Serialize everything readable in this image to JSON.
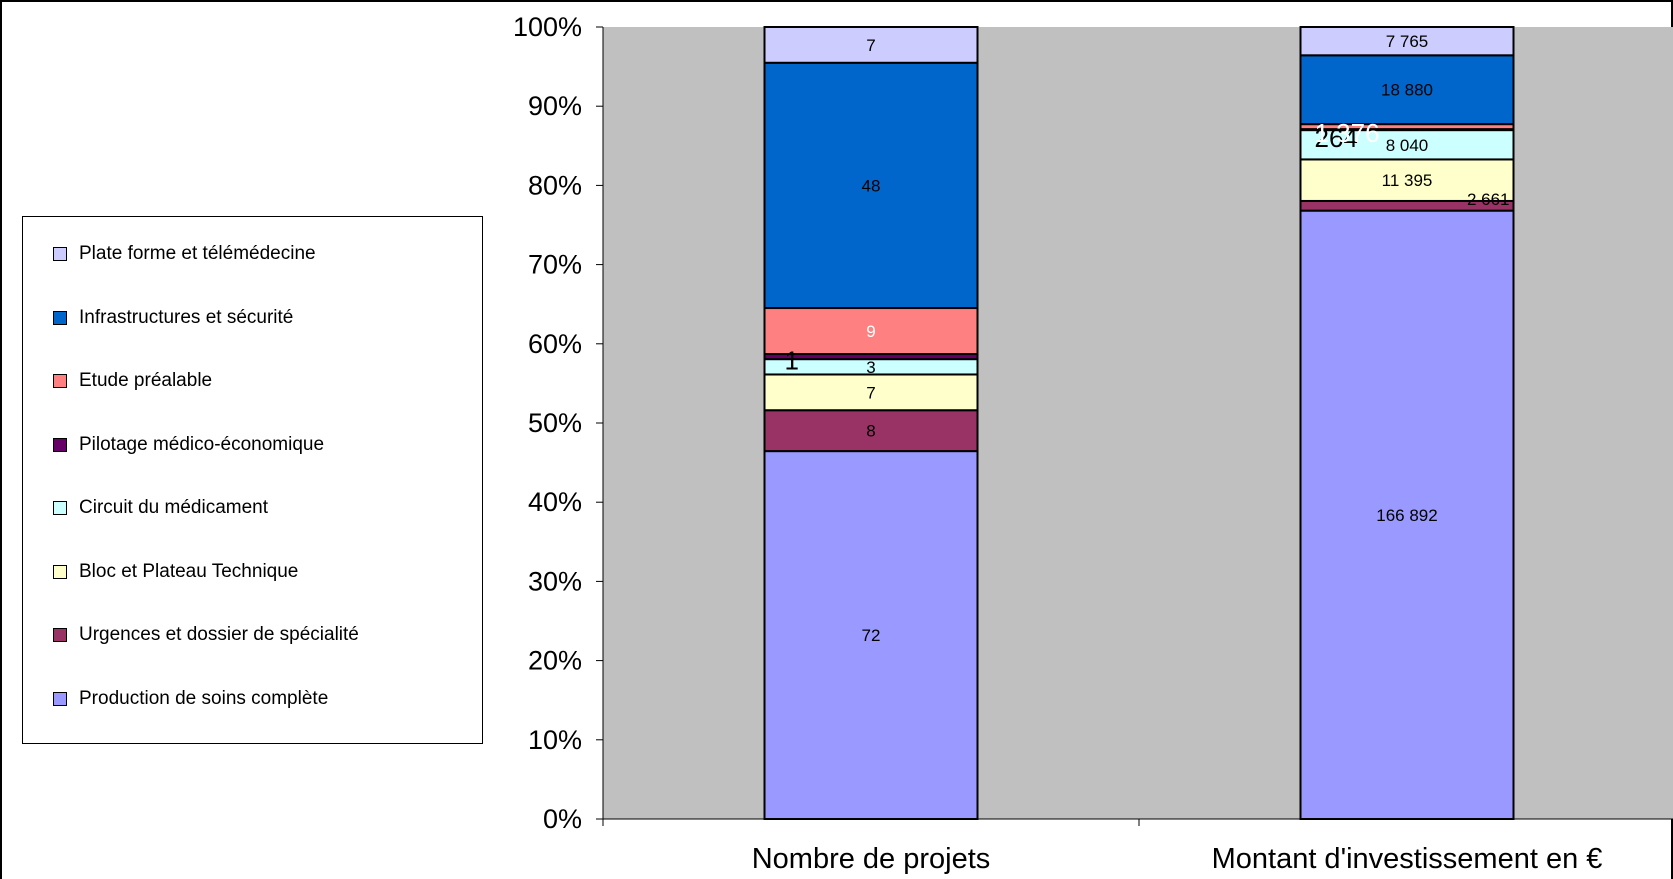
{
  "chart_data": {
    "type": "bar",
    "stacked": "percent",
    "categories": [
      "Nombre de projets",
      "Montant d'investissement en €"
    ],
    "ylim": [
      0,
      100
    ],
    "yticks": [
      "0%",
      "10%",
      "20%",
      "30%",
      "40%",
      "50%",
      "60%",
      "70%",
      "80%",
      "90%",
      "100%"
    ],
    "grid": false,
    "legend_position": "left",
    "plot_background": "#C0C0C0",
    "series": [
      {
        "name": "Production de soins complète",
        "color": "#9999FF",
        "values": [
          72,
          166892
        ],
        "labels": [
          "72",
          "166 892"
        ]
      },
      {
        "name": "Urgences et dossier de spécialité",
        "color": "#993366",
        "values": [
          8,
          2661
        ],
        "labels": [
          "8",
          "2 661"
        ]
      },
      {
        "name": "Bloc et Plateau Technique",
        "color": "#FFFFCC",
        "values": [
          7,
          11395
        ],
        "labels": [
          "7",
          "11 395"
        ]
      },
      {
        "name": "Circuit du médicament",
        "color": "#CCFFFF",
        "values": [
          3,
          8040
        ],
        "labels": [
          "3",
          "8 040"
        ]
      },
      {
        "name": "Pilotage médico-économique",
        "color": "#660066",
        "values": [
          1,
          264
        ],
        "labels": [
          "1",
          "264"
        ]
      },
      {
        "name": "Etude préalable",
        "color": "#FF8080",
        "values": [
          9,
          1376
        ],
        "labels": [
          "9",
          "1 376"
        ]
      },
      {
        "name": "Infrastructures et sécurité",
        "color": "#0066CC",
        "values": [
          48,
          18880
        ],
        "labels": [
          "48",
          "18 880"
        ]
      },
      {
        "name": "Plate forme et télémédecine",
        "color": "#CCCCFF",
        "values": [
          7,
          7765
        ],
        "labels": [
          "7",
          "7 765"
        ]
      }
    ]
  }
}
